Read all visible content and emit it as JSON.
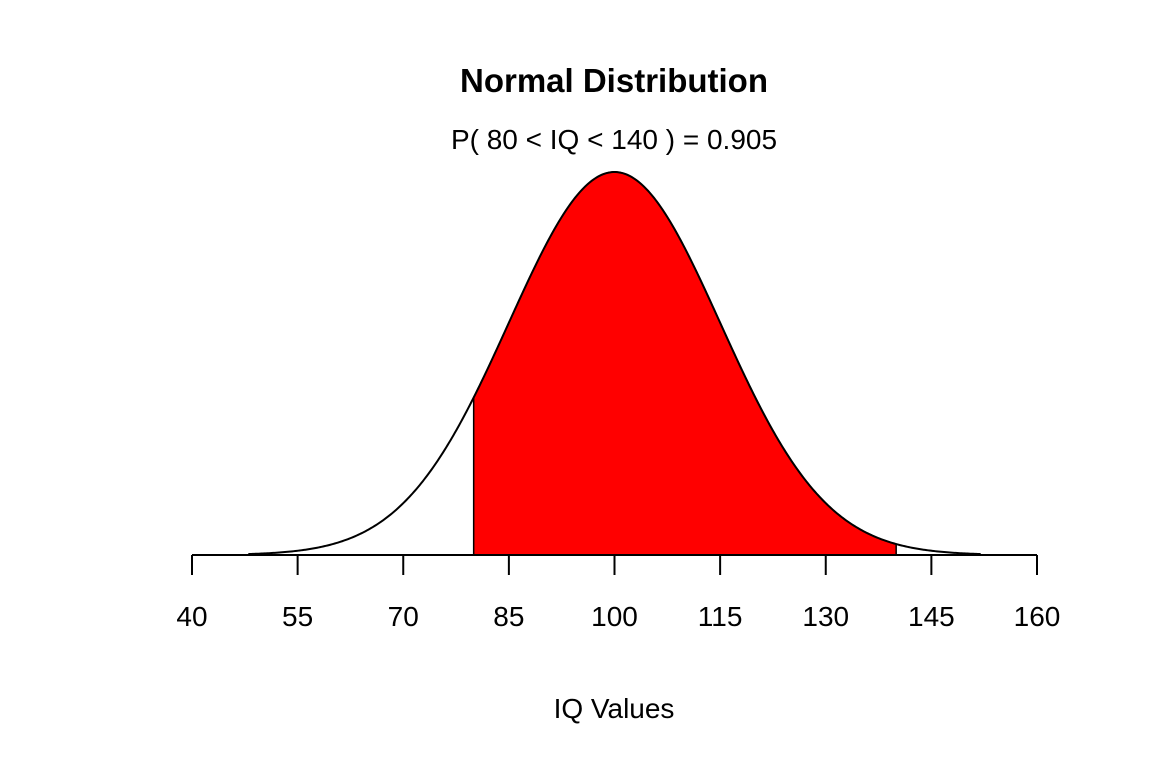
{
  "chart_data": {
    "type": "area",
    "title": "Normal Distribution",
    "subtitle": "P( 80 < IQ < 140 ) = 0.905",
    "xlabel": "IQ Values",
    "ylabel": "",
    "mean": 100,
    "sd": 15,
    "xlim": [
      40,
      160
    ],
    "x_ticks": [
      "40",
      "55",
      "70",
      "85",
      "100",
      "115",
      "130",
      "145",
      "160"
    ],
    "shaded_range": [
      80,
      140
    ],
    "probability": 0.905,
    "grid": false,
    "colors": {
      "shade": "#ff0000",
      "curve": "#000000",
      "background": "#ffffff"
    }
  }
}
